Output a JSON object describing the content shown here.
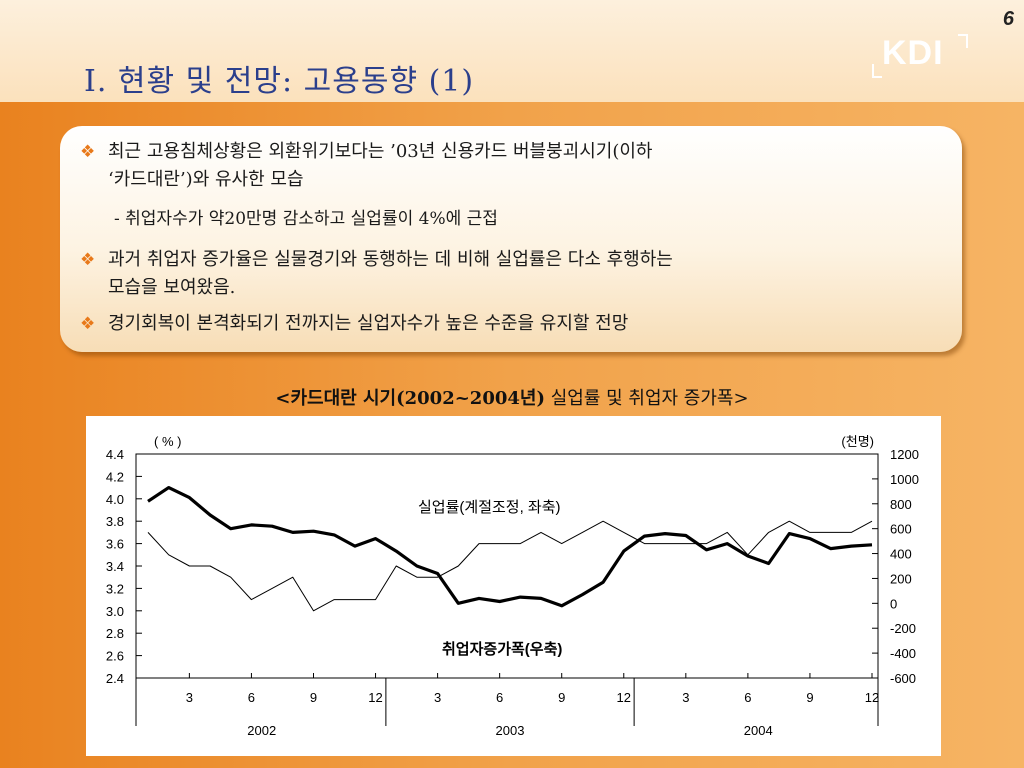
{
  "page": {
    "number": "6"
  },
  "header": {
    "title": "I. 현황 및 전망: 고용동향 (1)",
    "logo_text": "KDI"
  },
  "bullets": [
    {
      "lines": [
        "최근 고용침체상황은 외환위기보다는 ’03년 신용카드 버블붕괴시기(이하",
        "‘카드대란’)와 유사한 모습"
      ],
      "sub": "- 취업자수가 약20만명 감소하고 실업률이 4%에 근접"
    },
    {
      "lines": [
        "과거 취업자 증가율은 실물경기와 동행하는 데 비해 실업률은 다소 후행하는",
        "모습을 보여왔음."
      ]
    },
    {
      "lines": [
        "경기회복이 본격화되기 전까지는 실업자수가 높은 수준을 유지할 전망"
      ]
    }
  ],
  "caption": {
    "bold_part": "<카드대란 시기(2002~2004년)",
    "rest": " 실업률 및 취업자 증가폭>"
  },
  "chart_data": {
    "type": "line",
    "left_axis": {
      "unit_label": "( % )",
      "ylim": [
        2.4,
        4.4
      ],
      "ticks": [
        "4.4",
        "4.2",
        "4.0",
        "3.8",
        "3.6",
        "3.4",
        "3.2",
        "3.0",
        "2.8",
        "2.6",
        "2.4"
      ]
    },
    "right_axis": {
      "unit_label": "(천명)",
      "ylim": [
        -600,
        1200
      ],
      "ticks": [
        "1200",
        "1000",
        "800",
        "600",
        "400",
        "200",
        "0",
        "-200",
        "-400",
        "-600"
      ]
    },
    "x_tick_labels": [
      "3",
      "6",
      "9",
      "12",
      "3",
      "6",
      "9",
      "12",
      "3",
      "6",
      "9",
      "12"
    ],
    "year_labels": [
      "2002",
      "2003",
      "2004"
    ],
    "series": [
      {
        "name": "실업률(계절조정, 좌축)",
        "axis": "left",
        "color": "#000000",
        "width": 1,
        "values": [
          3.7,
          3.5,
          3.4,
          3.4,
          3.3,
          3.1,
          3.2,
          3.3,
          3.0,
          3.1,
          3.1,
          3.1,
          3.4,
          3.3,
          3.3,
          3.4,
          3.6,
          3.6,
          3.6,
          3.7,
          3.6,
          3.7,
          3.8,
          3.7,
          3.6,
          3.6,
          3.6,
          3.6,
          3.7,
          3.5,
          3.7,
          3.8,
          3.7,
          3.7,
          3.7,
          3.8
        ]
      },
      {
        "name": "취업자증가폭(우축)",
        "axis": "right",
        "color": "#000000",
        "width": 3.2,
        "values": [
          820,
          930,
          850,
          710,
          600,
          630,
          620,
          570,
          580,
          550,
          460,
          520,
          420,
          300,
          240,
          0,
          40,
          15,
          50,
          40,
          -20,
          70,
          170,
          420,
          540,
          560,
          545,
          430,
          480,
          380,
          320,
          560,
          520,
          440,
          460,
          470
        ]
      }
    ]
  }
}
